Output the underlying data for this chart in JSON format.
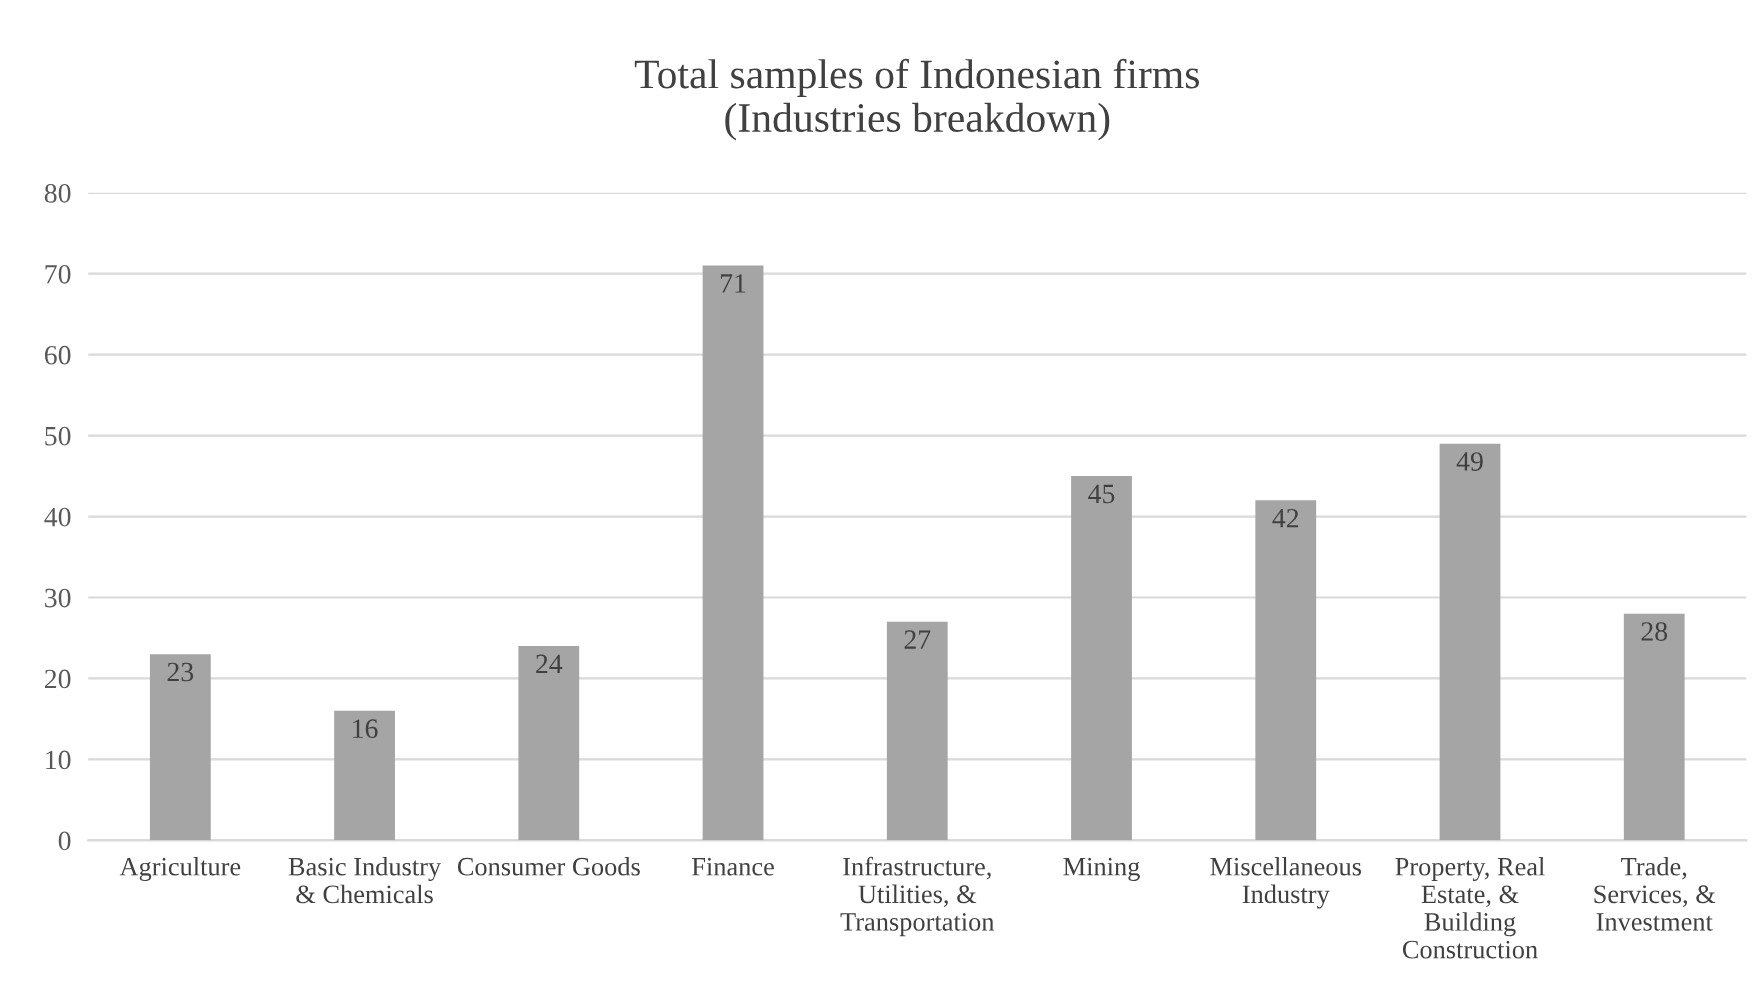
{
  "chart_data": {
    "type": "bar",
    "title": "Total samples of Indonesian firms\n(Industries breakdown)",
    "categories": [
      "Agriculture",
      "Basic Industry & Chemicals",
      "Consumer Goods",
      "Finance",
      "Infrastructure, Utilities, & Transportation",
      "Mining",
      "Miscellaneous Industry",
      "Property, Real Estate, & Building Construction",
      "Trade, Services, & Investment"
    ],
    "values": [
      23,
      16,
      24,
      71,
      27,
      45,
      42,
      49,
      28
    ],
    "color": "#a5a5a5",
    "ylim": [
      0,
      80
    ],
    "yticks": [
      0,
      10,
      20,
      30,
      40,
      50,
      60,
      70,
      80
    ],
    "grid": "y",
    "data_labels": true
  }
}
